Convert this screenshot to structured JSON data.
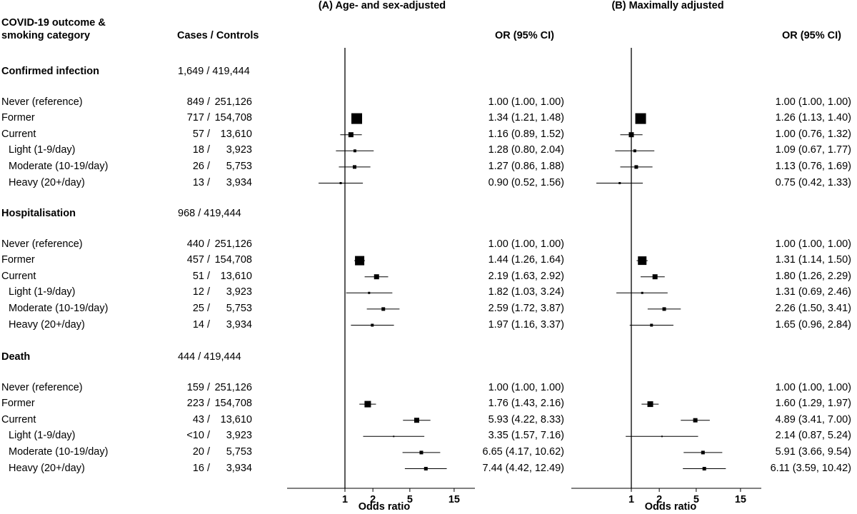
{
  "header": {
    "outcome_label": [
      "COVID-19 outcome &",
      "smoking category"
    ],
    "cases_controls_label": "Cases / Controls"
  },
  "chart_data": [
    {
      "type": "forest",
      "title": "(A) Age- and sex-adjusted",
      "xlabel": "Odds ratio",
      "x_scale": "log",
      "xlim": [
        0.5,
        15
      ],
      "reference_line": 1,
      "xticks": [
        "1",
        "2",
        "5",
        "15"
      ],
      "or_header": "OR (95% CI)",
      "rows": [
        {
          "or": 1.0,
          "lo": 1.0,
          "hi": 1.0,
          "label": "1.00 (1.00, 1.00)",
          "size": 0
        },
        {
          "or": 1.34,
          "lo": 1.21,
          "hi": 1.48,
          "label": "1.34 (1.21, 1.48)",
          "size": 15
        },
        {
          "or": 1.16,
          "lo": 0.89,
          "hi": 1.52,
          "label": "1.16 (0.89, 1.52)",
          "size": 7
        },
        {
          "or": 1.28,
          "lo": 0.8,
          "hi": 2.04,
          "label": "1.28 (0.80, 2.04)",
          "size": 4
        },
        {
          "or": 1.27,
          "lo": 0.86,
          "hi": 1.88,
          "label": "1.27 (0.86, 1.88)",
          "size": 5
        },
        {
          "or": 0.9,
          "lo": 0.52,
          "hi": 1.56,
          "label": "0.90 (0.52, 1.56)",
          "size": 3
        },
        {
          "or": 1.0,
          "lo": 1.0,
          "hi": 1.0,
          "label": "1.00 (1.00, 1.00)",
          "size": 0
        },
        {
          "or": 1.44,
          "lo": 1.26,
          "hi": 1.64,
          "label": "1.44 (1.26, 1.64)",
          "size": 13
        },
        {
          "or": 2.19,
          "lo": 1.63,
          "hi": 2.92,
          "label": "2.19 (1.63, 2.92)",
          "size": 7
        },
        {
          "or": 1.82,
          "lo": 1.03,
          "hi": 3.24,
          "label": "1.82 (1.03, 3.24)",
          "size": 3
        },
        {
          "or": 2.59,
          "lo": 1.72,
          "hi": 3.87,
          "label": "2.59 (1.72, 3.87)",
          "size": 5
        },
        {
          "or": 1.97,
          "lo": 1.16,
          "hi": 3.37,
          "label": "1.97 (1.16, 3.37)",
          "size": 4
        },
        {
          "or": 1.0,
          "lo": 1.0,
          "hi": 1.0,
          "label": "1.00 (1.00, 1.00)",
          "size": 0
        },
        {
          "or": 1.76,
          "lo": 1.43,
          "hi": 2.16,
          "label": "1.76 (1.43, 2.16)",
          "size": 9
        },
        {
          "or": 5.93,
          "lo": 4.22,
          "hi": 8.33,
          "label": "5.93 (4.22, 8.33)",
          "size": 7
        },
        {
          "or": 3.35,
          "lo": 1.57,
          "hi": 7.16,
          "label": "3.35 (1.57, 7.16)",
          "size": 2
        },
        {
          "or": 6.65,
          "lo": 4.17,
          "hi": 10.62,
          "label": "6.65 (4.17, 10.62)",
          "size": 5
        },
        {
          "or": 7.44,
          "lo": 4.42,
          "hi": 12.49,
          "label": "7.44 (4.42, 12.49)",
          "size": 5
        }
      ]
    },
    {
      "type": "forest",
      "title": "(B) Maximally adjusted",
      "xlabel": "Odds ratio",
      "x_scale": "log",
      "xlim": [
        0.5,
        15
      ],
      "reference_line": 1,
      "xticks": [
        "1",
        "2",
        "5",
        "15"
      ],
      "or_header": "OR (95% CI)",
      "rows": [
        {
          "or": 1.0,
          "lo": 1.0,
          "hi": 1.0,
          "label": "1.00 (1.00, 1.00)",
          "size": 0
        },
        {
          "or": 1.26,
          "lo": 1.13,
          "hi": 1.4,
          "label": "1.26 (1.13, 1.40)",
          "size": 15
        },
        {
          "or": 1.0,
          "lo": 0.76,
          "hi": 1.32,
          "label": "1.00 (0.76, 1.32)",
          "size": 7
        },
        {
          "or": 1.09,
          "lo": 0.67,
          "hi": 1.77,
          "label": "1.09 (0.67, 1.77)",
          "size": 4
        },
        {
          "or": 1.13,
          "lo": 0.76,
          "hi": 1.69,
          "label": "1.13 (0.76, 1.69)",
          "size": 5
        },
        {
          "or": 0.75,
          "lo": 0.42,
          "hi": 1.33,
          "label": "0.75 (0.42, 1.33)",
          "size": 3
        },
        {
          "or": 1.0,
          "lo": 1.0,
          "hi": 1.0,
          "label": "1.00 (1.00, 1.00)",
          "size": 0
        },
        {
          "or": 1.31,
          "lo": 1.14,
          "hi": 1.5,
          "label": "1.31 (1.14, 1.50)",
          "size": 12
        },
        {
          "or": 1.8,
          "lo": 1.26,
          "hi": 2.29,
          "label": "1.80 (1.26, 2.29)",
          "size": 7
        },
        {
          "or": 1.31,
          "lo": 0.69,
          "hi": 2.46,
          "label": "1.31 (0.69, 2.46)",
          "size": 3
        },
        {
          "or": 2.26,
          "lo": 1.5,
          "hi": 3.41,
          "label": "2.26 (1.50, 3.41)",
          "size": 5
        },
        {
          "or": 1.65,
          "lo": 0.96,
          "hi": 2.84,
          "label": "1.65 (0.96, 2.84)",
          "size": 4
        },
        {
          "or": 1.0,
          "lo": 1.0,
          "hi": 1.0,
          "label": "1.00 (1.00, 1.00)",
          "size": 0
        },
        {
          "or": 1.6,
          "lo": 1.29,
          "hi": 1.97,
          "label": "1.60 (1.29, 1.97)",
          "size": 8
        },
        {
          "or": 4.89,
          "lo": 3.41,
          "hi": 7.0,
          "label": "4.89 (3.41, 7.00)",
          "size": 6
        },
        {
          "or": 2.14,
          "lo": 0.87,
          "hi": 5.24,
          "label": "2.14 (0.87, 5.24)",
          "size": 2
        },
        {
          "or": 5.91,
          "lo": 3.66,
          "hi": 9.54,
          "label": "5.91 (3.66, 9.54)",
          "size": 5
        },
        {
          "or": 6.11,
          "lo": 3.59,
          "hi": 10.42,
          "label": "6.11 (3.59, 10.42)",
          "size": 5
        }
      ]
    }
  ],
  "groups": [
    {
      "name": "Confirmed infection",
      "cases": "1,649",
      "controls": "419,444",
      "rows": [
        {
          "label": "Never (reference)",
          "cases": "849",
          "controls": "251,126"
        },
        {
          "label": "Former",
          "cases": "717",
          "controls": "154,708"
        },
        {
          "label": "Current",
          "cases": "57",
          "controls": "13,610"
        },
        {
          "label": "Light (1-9/day)",
          "cases": "18",
          "controls": "3,923"
        },
        {
          "label": "Moderate (10-19/day)",
          "cases": "26",
          "controls": "5,753"
        },
        {
          "label": "Heavy (20+/day)",
          "cases": "13",
          "controls": "3,934"
        }
      ]
    },
    {
      "name": "Hospitalisation",
      "cases": "968",
      "controls": "419,444",
      "rows": [
        {
          "label": "Never (reference)",
          "cases": "440",
          "controls": "251,126"
        },
        {
          "label": "Former",
          "cases": "457",
          "controls": "154,708"
        },
        {
          "label": "Current",
          "cases": "51",
          "controls": "13,610"
        },
        {
          "label": "Light (1-9/day)",
          "cases": "12",
          "controls": "3,923"
        },
        {
          "label": "Moderate (10-19/day)",
          "cases": "25",
          "controls": "5,753"
        },
        {
          "label": "Heavy (20+/day)",
          "cases": "14",
          "controls": "3,934"
        }
      ]
    },
    {
      "name": "Death",
      "cases": "444",
      "controls": "419,444",
      "rows": [
        {
          "label": "Never (reference)",
          "cases": "159",
          "controls": "251,126"
        },
        {
          "label": "Former",
          "cases": "223",
          "controls": "154,708"
        },
        {
          "label": "Current",
          "cases": "43",
          "controls": "13,610"
        },
        {
          "label": "Light (1-9/day)",
          "cases": "<10",
          "controls": "3,923"
        },
        {
          "label": "Moderate (10-19/day)",
          "cases": "20",
          "controls": "5,753"
        },
        {
          "label": "Heavy (20+/day)",
          "cases": "16",
          "controls": "3,934"
        }
      ]
    }
  ]
}
